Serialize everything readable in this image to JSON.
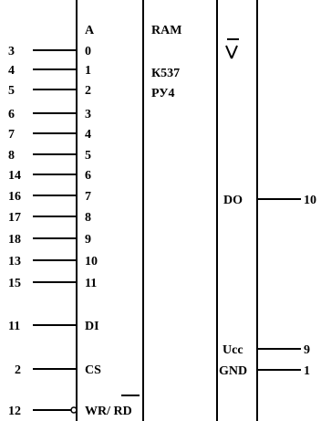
{
  "chip": {
    "header": "A",
    "type": "RAM",
    "part_number": "К537",
    "series": "РУ4",
    "wr_rd_label": "WR/ RD"
  },
  "left_pins": [
    {
      "pin": "3",
      "label": "0"
    },
    {
      "pin": "4",
      "label": "1"
    },
    {
      "pin": "5",
      "label": "2"
    },
    {
      "pin": "6",
      "label": "3"
    },
    {
      "pin": "7",
      "label": "4"
    },
    {
      "pin": "8",
      "label": "5"
    },
    {
      "pin": "14",
      "label": "6"
    },
    {
      "pin": "16",
      "label": "7"
    },
    {
      "pin": "17",
      "label": "8"
    },
    {
      "pin": "18",
      "label": "9"
    },
    {
      "pin": "13",
      "label": "10"
    },
    {
      "pin": "15",
      "label": "11"
    },
    {
      "pin": "11",
      "label": "DI"
    },
    {
      "pin": "2",
      "label": "CS"
    },
    {
      "pin": "12",
      "label": "WR/ RD"
    }
  ],
  "right_pins": [
    {
      "pin": "10",
      "label": "DO"
    },
    {
      "pin": "9",
      "label": "Ucc"
    },
    {
      "pin": "1",
      "label": "GND"
    }
  ]
}
